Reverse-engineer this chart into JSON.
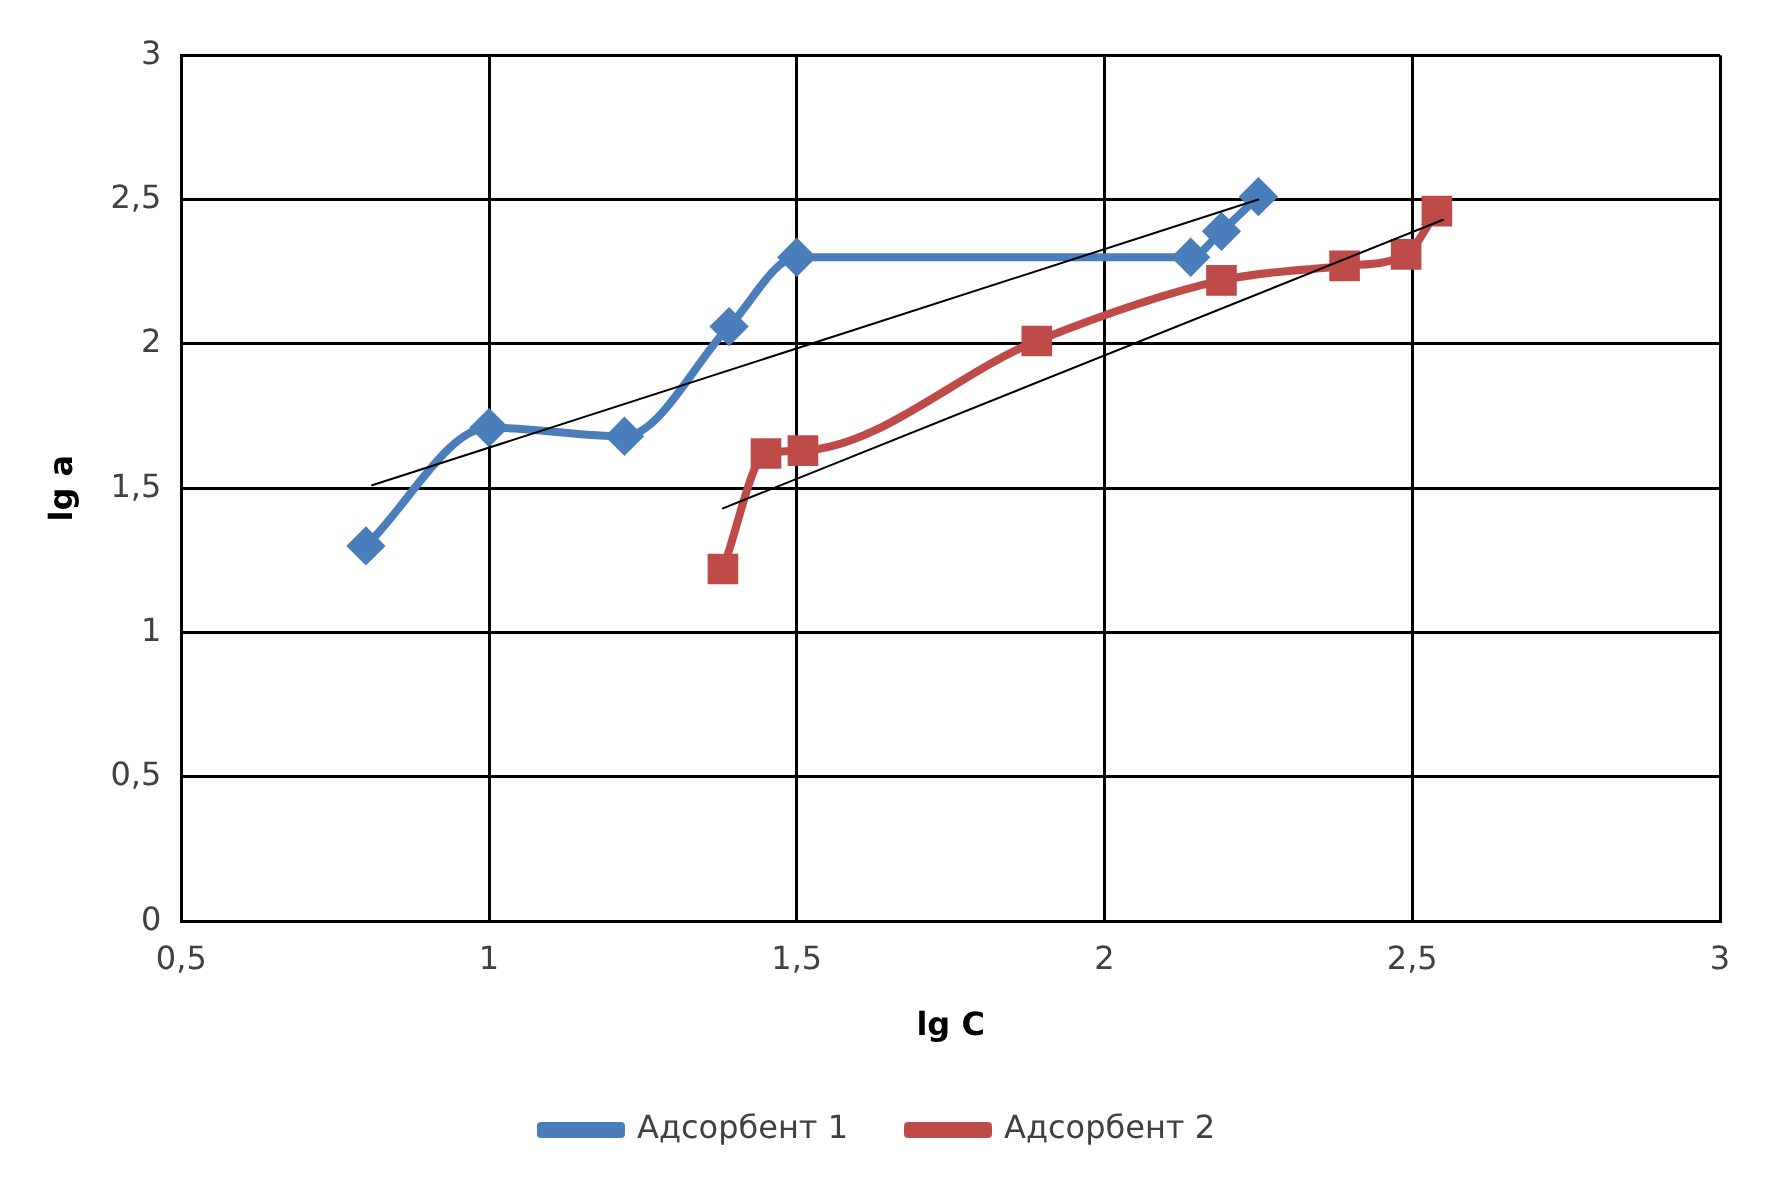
{
  "chart_data": {
    "type": "line",
    "xlabel": "lg C",
    "ylabel": "lg a",
    "xlim": [
      0.5,
      3
    ],
    "xticks": [
      {
        "value": 0.5,
        "label": "0,5"
      },
      1,
      {
        "value": 1.5,
        "label": "1,5"
      },
      2,
      {
        "value": 2.5,
        "label": "2,5"
      },
      3
    ],
    "ylim": [
      0,
      3
    ],
    "yticks": [
      0,
      {
        "value": 0.5,
        "label": "0,5"
      },
      1,
      {
        "value": 1.5,
        "label": "1,5"
      },
      2,
      {
        "value": 2.5,
        "label": "2,5"
      },
      3
    ],
    "grid": true,
    "legend": "bottom",
    "series": [
      {
        "name": "Адсорбент 1",
        "color": "#4a7ebb",
        "marker": "diamond",
        "x": [
          0.8,
          1.0,
          1.22,
          1.39,
          1.5,
          2.14,
          2.19,
          2.25
        ],
        "values": [
          1.3,
          1.71,
          1.68,
          2.06,
          2.3,
          2.3,
          2.39,
          2.51
        ]
      },
      {
        "name": "Адсорбент 2",
        "color": "#be4b48",
        "marker": "square",
        "x": [
          1.38,
          1.45,
          1.51,
          1.89,
          2.19,
          2.39,
          2.49,
          2.54
        ],
        "values": [
          1.22,
          1.62,
          1.63,
          2.01,
          2.22,
          2.27,
          2.31,
          2.46
        ]
      },
      {
        "type": "line",
        "color": "#000000",
        "marker": "none",
        "x": [
          0.81,
          2.25
        ],
        "values": [
          1.51,
          2.5
        ]
      },
      {
        "type": "line",
        "color": "#000000",
        "marker": "none",
        "x": [
          1.38,
          2.55
        ],
        "values": [
          1.43,
          2.43
        ]
      }
    ]
  }
}
